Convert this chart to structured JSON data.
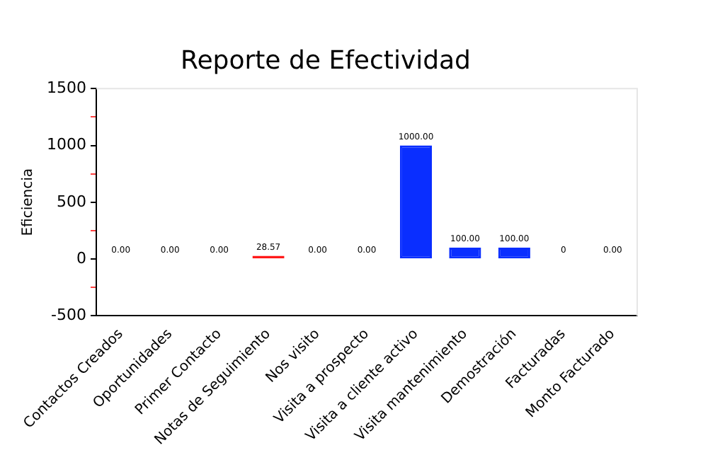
{
  "chart_data": {
    "type": "bar",
    "title": "Reporte de Efectividad",
    "ylabel": "Eficiencia",
    "categories": [
      "Contactos Creados",
      "Oportunidades",
      "Primer Contacto",
      "Notas de Seguimiento",
      "Nos visito",
      "Visita a prospecto",
      "Visita a cliente activo",
      "Visita mantenimiento",
      "Demostración",
      "Facturadas",
      "Monto Facturado"
    ],
    "values": [
      0,
      0,
      0,
      28.57,
      0,
      0,
      1000,
      100,
      100,
      0,
      0
    ],
    "colors": [
      "#f28b8b",
      "#f28b8b",
      "#f28b8b",
      "#ff1a1a",
      "#f28b8b",
      "#f28b8b",
      "#0a2eff",
      "#0a2eff",
      "#0a2eff",
      "#f28b8b",
      "#f28b8b"
    ],
    "value_labels": [
      "0.00",
      "0.00",
      "0.00",
      "28.57",
      "0.00",
      "0.00",
      "1000.00",
      "100.00",
      "100.00",
      "0",
      "0.00"
    ],
    "ylim": [
      -500,
      1500
    ],
    "yticks": [
      -500,
      {
        "value": -250,
        "label": null
      },
      0,
      {
        "value": 250,
        "label": null
      },
      500,
      {
        "value": 750,
        "label": null
      },
      1000,
      {
        "value": 1250,
        "label": null
      },
      1500
    ],
    "grid": false
  }
}
